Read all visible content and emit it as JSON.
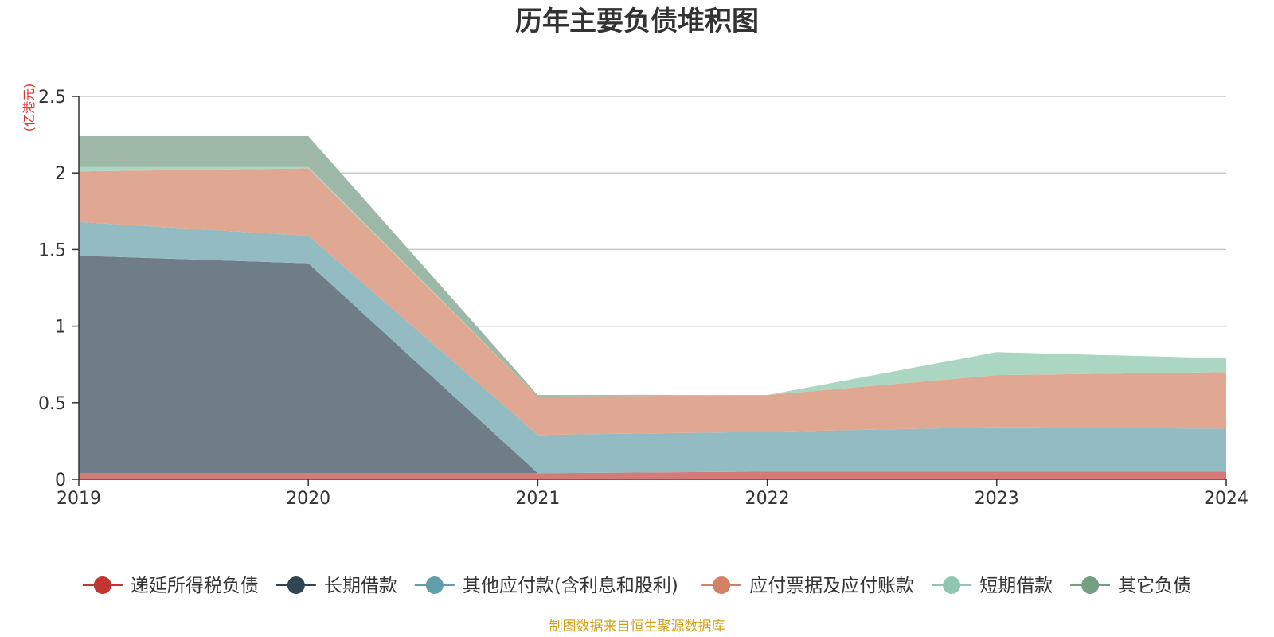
{
  "chart_data": {
    "type": "area",
    "stacked": true,
    "title": "历年主要负债堆积图",
    "unit_label": "(亿港元)",
    "categories": [
      "2019",
      "2020",
      "2021",
      "2022",
      "2023",
      "2024"
    ],
    "ylim": [
      0,
      2.5
    ],
    "yticks": [
      "0",
      "0.5",
      "1",
      "1.5",
      "2",
      "2.5"
    ],
    "grid": true,
    "legend_position": "bottom",
    "series": [
      {
        "name": "递延所得税负债",
        "color": "#c23531",
        "fill": "#d47a79",
        "values": [
          0.04,
          0.04,
          0.04,
          0.05,
          0.05,
          0.05
        ]
      },
      {
        "name": "长期借款",
        "color": "#2f4554",
        "fill": "#6e7d88",
        "values": [
          1.42,
          1.37,
          0.0,
          0.0,
          0.0,
          0.0
        ]
      },
      {
        "name": "其他应付款(含利息和股利)",
        "color": "#61a0a8",
        "fill": "#93bcc2",
        "values": [
          0.22,
          0.18,
          0.25,
          0.26,
          0.29,
          0.28
        ]
      },
      {
        "name": "应付票据及应付账款",
        "color": "#d48265",
        "fill": "#e0a893",
        "values": [
          0.33,
          0.44,
          0.25,
          0.24,
          0.34,
          0.37
        ]
      },
      {
        "name": "短期借款",
        "color": "#91c7ae",
        "fill": "#abd6c2",
        "values": [
          0.03,
          0.01,
          0.0,
          0.0,
          0.15,
          0.09
        ]
      },
      {
        "name": "其它负债",
        "color": "#749f83",
        "fill": "#9db8a6",
        "values": [
          0.2,
          0.2,
          0.01,
          0.0,
          0.0,
          0.0
        ]
      }
    ]
  },
  "footer": {
    "source": "制图数据来自恒生聚源数据库"
  }
}
